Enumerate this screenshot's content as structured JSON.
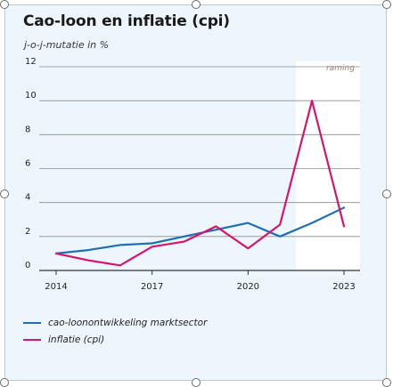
{
  "chart_data": {
    "type": "line",
    "title": "Cao-loon en inflatie (cpi)",
    "subtitle": "j-o-j-mutatie in %",
    "annotation": "raming",
    "x": [
      2014,
      2015,
      2016,
      2017,
      2018,
      2019,
      2020,
      2021,
      2022,
      2023
    ],
    "xticks": [
      "2014",
      "2017",
      "2020",
      "2023"
    ],
    "yticks": [
      "0",
      "2",
      "4",
      "6",
      "8",
      "10",
      "12"
    ],
    "xlim": [
      2014,
      2023
    ],
    "ylim": [
      0,
      12
    ],
    "forecast_range": [
      2021.5,
      2023.5
    ],
    "grid": true,
    "legend_position": "bottom-left",
    "series": [
      {
        "name": "cao-loonontwikkeling marktsector",
        "color": "#1f6fb4",
        "values": [
          1.0,
          1.2,
          1.5,
          1.6,
          2.0,
          2.4,
          2.8,
          2.0,
          2.8,
          3.7
        ]
      },
      {
        "name": "inflatie (cpi)",
        "color": "#d6146c",
        "values": [
          1.0,
          0.6,
          0.3,
          1.4,
          1.7,
          2.6,
          1.3,
          2.7,
          10.0,
          2.6
        ]
      }
    ]
  }
}
